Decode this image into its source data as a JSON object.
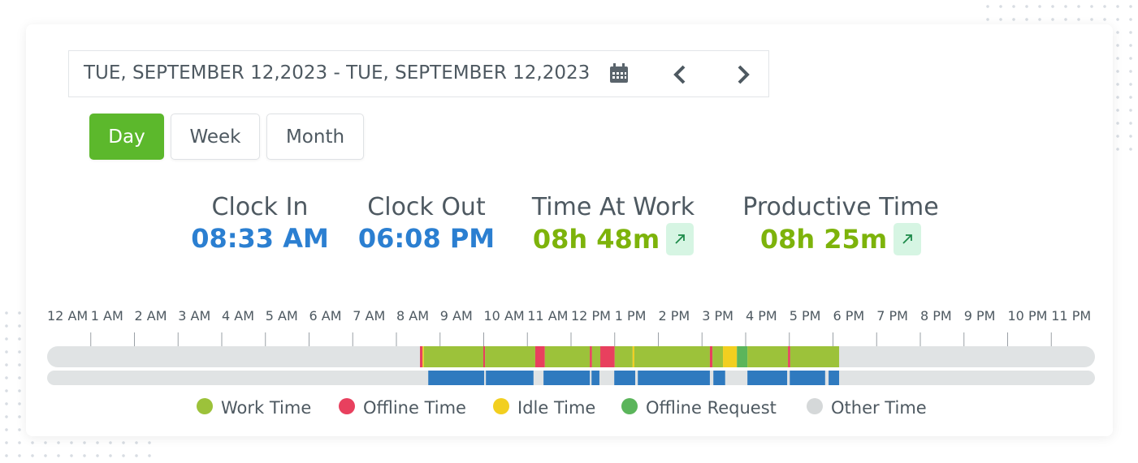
{
  "date_range": {
    "text": "TUE, SEPTEMBER 12,2023 - TUE, SEPTEMBER 12,2023"
  },
  "tabs": [
    "Day",
    "Week",
    "Month"
  ],
  "active_tab": 0,
  "stats": [
    {
      "label": "Clock In",
      "value": "08:33 AM",
      "color": "#2b7fd1",
      "trend": false
    },
    {
      "label": "Clock Out",
      "value": "06:08 PM",
      "color": "#2b7fd1",
      "trend": false
    },
    {
      "label": "Time At Work",
      "value": "08h 48m",
      "color": "#7db30b",
      "trend": true
    },
    {
      "label": "Productive Time",
      "value": "08h 25m",
      "color": "#7db30b",
      "trend": true
    }
  ],
  "timeline": {
    "hours": [
      "12 AM",
      "1 AM",
      "2 AM",
      "3 AM",
      "4 AM",
      "5 AM",
      "6 AM",
      "7 AM",
      "8 AM",
      "9 AM",
      "10 AM",
      "11 AM",
      "12 PM",
      "1 PM",
      "2 PM",
      "3 PM",
      "4 PM",
      "5 PM",
      "6 PM",
      "7 PM",
      "8 PM",
      "9 PM",
      "10 PM",
      "11 PM"
    ],
    "range": [
      0,
      24
    ],
    "segments": [
      {
        "legend": 1,
        "start": 8.54,
        "end": 8.6
      },
      {
        "legend": 2,
        "start": 8.6,
        "end": 8.63
      },
      {
        "legend": 0,
        "start": 8.63,
        "end": 9.99
      },
      {
        "legend": 1,
        "start": 9.99,
        "end": 10.03
      },
      {
        "legend": 0,
        "start": 10.03,
        "end": 11.18
      },
      {
        "legend": 1,
        "start": 11.18,
        "end": 11.4
      },
      {
        "legend": 0,
        "start": 11.4,
        "end": 12.43
      },
      {
        "legend": 1,
        "start": 12.43,
        "end": 12.48
      },
      {
        "legend": 0,
        "start": 12.48,
        "end": 12.67
      },
      {
        "legend": 1,
        "start": 12.67,
        "end": 13.0
      },
      {
        "legend": 0,
        "start": 13.0,
        "end": 13.41
      },
      {
        "legend": 2,
        "start": 13.41,
        "end": 13.45
      },
      {
        "legend": 0,
        "start": 13.45,
        "end": 15.18
      },
      {
        "legend": 1,
        "start": 15.18,
        "end": 15.24
      },
      {
        "legend": 0,
        "start": 15.24,
        "end": 15.48
      },
      {
        "legend": 2,
        "start": 15.48,
        "end": 15.8
      },
      {
        "legend": 3,
        "start": 15.8,
        "end": 16.04
      },
      {
        "legend": 0,
        "start": 16.04,
        "end": 16.97
      },
      {
        "legend": 1,
        "start": 16.97,
        "end": 17.02
      },
      {
        "legend": 0,
        "start": 17.02,
        "end": 18.14
      }
    ],
    "activity_color": "#2f7abf",
    "activity": [
      {
        "start": 8.73,
        "end": 10.01
      },
      {
        "start": 10.05,
        "end": 11.14
      },
      {
        "start": 11.37,
        "end": 12.43
      },
      {
        "start": 12.47,
        "end": 12.65
      },
      {
        "start": 12.99,
        "end": 13.47
      },
      {
        "start": 13.53,
        "end": 15.18
      },
      {
        "start": 15.26,
        "end": 15.53
      },
      {
        "start": 16.04,
        "end": 16.95
      },
      {
        "start": 17.01,
        "end": 17.82
      },
      {
        "start": 17.9,
        "end": 18.14
      }
    ]
  },
  "legend": [
    {
      "name": "Work Time",
      "color": "#9cc23a"
    },
    {
      "name": "Offline Time",
      "color": "#e8405e"
    },
    {
      "name": "Idle Time",
      "color": "#f2cf1f"
    },
    {
      "name": "Offline Request",
      "color": "#5bb55b"
    },
    {
      "name": "Other Time",
      "color": "#d5d8d9"
    }
  ]
}
